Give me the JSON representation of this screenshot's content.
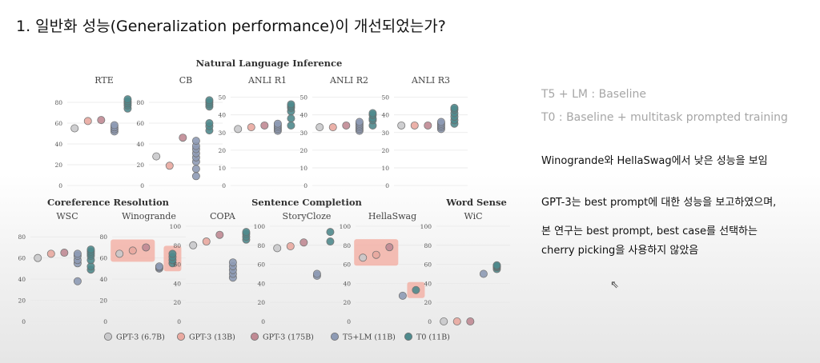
{
  "slide": {
    "title": "1. 일반화 성능(Generalization performance)이 개선되었는가?",
    "legend_notes": [
      "T5 + LM : Baseline",
      "T0 : Baseline + multitask prompted training"
    ],
    "notes": [
      "Winogrande와 HellaSwag에서 낮은 성능을 보임",
      "GPT-3는 best prompt에 대한 성능을 보고하였으며,",
      "본 연구는 best prompt, best case를 선택하는",
      "cherry picking을 사용하지 않았음"
    ]
  },
  "colors": {
    "gpt3_6_7b": "#c9c9cb",
    "gpt3_13b": "#e9a9a0",
    "gpt3_175b": "#c08a94",
    "t5_lm": "#8e9bb5",
    "t0": "#4f8a8d",
    "highlight": "#f3a99d"
  },
  "chart_data": {
    "type": "scatter",
    "series_names": [
      "GPT-3 (6.7B)",
      "GPT-3 (13B)",
      "GPT-3 (175B)",
      "T5+LM (11B)",
      "T0 (11B)"
    ],
    "groups": [
      {
        "title": "Natural Language Inference",
        "tasks": [
          "RTE",
          "CB",
          "ANLI R1",
          "ANLI R2",
          "ANLI R3"
        ]
      },
      {
        "title": "Coreference Resolution",
        "tasks": [
          "WSC",
          "Winogrande"
        ]
      },
      {
        "title": "Sentence Completion",
        "tasks": [
          "COPA",
          "StoryCloze",
          "HellaSwag"
        ]
      },
      {
        "title": "Word Sense",
        "tasks": [
          "WiC"
        ]
      }
    ],
    "panels": [
      {
        "task": "RTE",
        "yticks": [
          0,
          20,
          40,
          60,
          80
        ],
        "ylim": [
          0,
          90
        ],
        "points": {
          "GPT-3 (6.7B)": [
            55
          ],
          "GPT-3 (13B)": [
            62
          ],
          "GPT-3 (175B)": [
            63
          ],
          "T5+LM (11B)": [
            52,
            54,
            56,
            58
          ],
          "T0 (11B)": [
            74,
            77,
            79,
            81,
            83
          ]
        }
      },
      {
        "task": "CB",
        "yticks": [
          0,
          20,
          40,
          60,
          80
        ],
        "ylim": [
          0,
          90
        ],
        "points": {
          "GPT-3 (6.7B)": [
            28
          ],
          "GPT-3 (13B)": [
            19
          ],
          "GPT-3 (175B)": [
            46
          ],
          "T5+LM (11B)": [
            9,
            16,
            23,
            27,
            31,
            35,
            38,
            43
          ],
          "T0 (11B)": [
            53,
            57,
            60,
            76,
            78,
            80,
            82
          ]
        }
      },
      {
        "task": "ANLI R1",
        "yticks": [
          0,
          10,
          20,
          30,
          40,
          50
        ],
        "ylim": [
          0,
          53
        ],
        "points": {
          "GPT-3 (6.7B)": [
            32
          ],
          "GPT-3 (13B)": [
            33
          ],
          "GPT-3 (175B)": [
            34
          ],
          "T5+LM (11B)": [
            31,
            32,
            33,
            34,
            35
          ],
          "T0 (11B)": [
            34,
            38,
            42,
            44,
            45,
            46
          ]
        }
      },
      {
        "task": "ANLI R2",
        "yticks": [
          0,
          10,
          20,
          30,
          40,
          50
        ],
        "ylim": [
          0,
          53
        ],
        "points": {
          "GPT-3 (6.7B)": [
            33
          ],
          "GPT-3 (13B)": [
            33
          ],
          "GPT-3 (175B)": [
            34
          ],
          "T5+LM (11B)": [
            31,
            32,
            33,
            34,
            35,
            36
          ],
          "T0 (11B)": [
            34,
            37,
            38,
            40,
            41
          ]
        }
      },
      {
        "task": "ANLI R3",
        "yticks": [
          0,
          10,
          20,
          30,
          40,
          50
        ],
        "ylim": [
          0,
          53
        ],
        "points": {
          "GPT-3 (6.7B)": [
            34
          ],
          "GPT-3 (13B)": [
            34
          ],
          "GPT-3 (175B)": [
            34
          ],
          "T5+LM (11B)": [
            32,
            33,
            34,
            35,
            36
          ],
          "T0 (11B)": [
            35,
            37,
            39,
            41,
            43,
            44
          ]
        }
      },
      {
        "task": "WSC",
        "yticks": [
          0,
          20,
          40,
          60,
          80
        ],
        "ylim": [
          0,
          90
        ],
        "points": {
          "GPT-3 (6.7B)": [
            60
          ],
          "GPT-3 (13B)": [
            64
          ],
          "GPT-3 (175B)": [
            65
          ],
          "T5+LM (11B)": [
            38,
            55,
            58,
            62,
            64
          ],
          "T0 (11B)": [
            49,
            52,
            58,
            62,
            64,
            66,
            68
          ]
        }
      },
      {
        "task": "Winogrande",
        "yticks": [
          0,
          20,
          40,
          60,
          80
        ],
        "ylim": [
          0,
          90
        ],
        "points": {
          "GPT-3 (6.7B)": [
            64
          ],
          "GPT-3 (13B)": [
            67
          ],
          "GPT-3 (175B)": [
            70
          ],
          "T5+LM (11B)": [
            50,
            51,
            52
          ],
          "T0 (11B)": [
            55,
            58,
            61,
            64
          ]
        },
        "highlights": [
          [
            "GPT-3 (6.7B)",
            "GPT-3 (175B)"
          ],
          [
            "T0 (11B)",
            "T0 (11B)"
          ]
        ]
      },
      {
        "task": "COPA",
        "yticks": [
          0,
          20,
          40,
          60,
          80,
          100
        ],
        "ylim": [
          0,
          100
        ],
        "points": {
          "GPT-3 (6.7B)": [
            80
          ],
          "GPT-3 (13B)": [
            84
          ],
          "GPT-3 (175B)": [
            91
          ],
          "T5+LM (11B)": [
            46,
            50,
            54,
            58,
            62
          ],
          "T0 (11B)": [
            86,
            89,
            92,
            94
          ]
        }
      },
      {
        "task": "StoryCloze",
        "yticks": [
          0,
          20,
          40,
          60,
          80,
          100
        ],
        "ylim": [
          0,
          100
        ],
        "points": {
          "GPT-3 (6.7B)": [
            77
          ],
          "GPT-3 (13B)": [
            79
          ],
          "GPT-3 (175B)": [
            83
          ],
          "T5+LM (11B)": [
            48,
            50
          ],
          "T0 (11B)": [
            84,
            94
          ]
        }
      },
      {
        "task": "HellaSwag",
        "yticks": [
          0,
          20,
          40,
          60,
          80,
          100
        ],
        "ylim": [
          0,
          100
        ],
        "points": {
          "GPT-3 (6.7B)": [
            67
          ],
          "GPT-3 (13B)": [
            70
          ],
          "GPT-3 (175B)": [
            78
          ],
          "T5+LM (11B)": [
            27
          ],
          "T0 (11B)": [
            33
          ]
        },
        "highlights": [
          [
            "GPT-3 (6.7B)",
            "GPT-3 (175B)"
          ],
          [
            "T0 (11B)",
            "T0 (11B)"
          ]
        ]
      },
      {
        "task": "WiC",
        "yticks": [
          0,
          20,
          40,
          60,
          80,
          100
        ],
        "ylim": [
          0,
          100
        ],
        "points": {
          "GPT-3 (6.7B)": [
            0
          ],
          "GPT-3 (13B)": [
            0
          ],
          "GPT-3 (175B)": [
            0
          ],
          "T5+LM (11B)": [
            50
          ],
          "T0 (11B)": [
            55,
            57,
            58,
            59
          ]
        }
      }
    ],
    "legend_position": "bottom"
  }
}
